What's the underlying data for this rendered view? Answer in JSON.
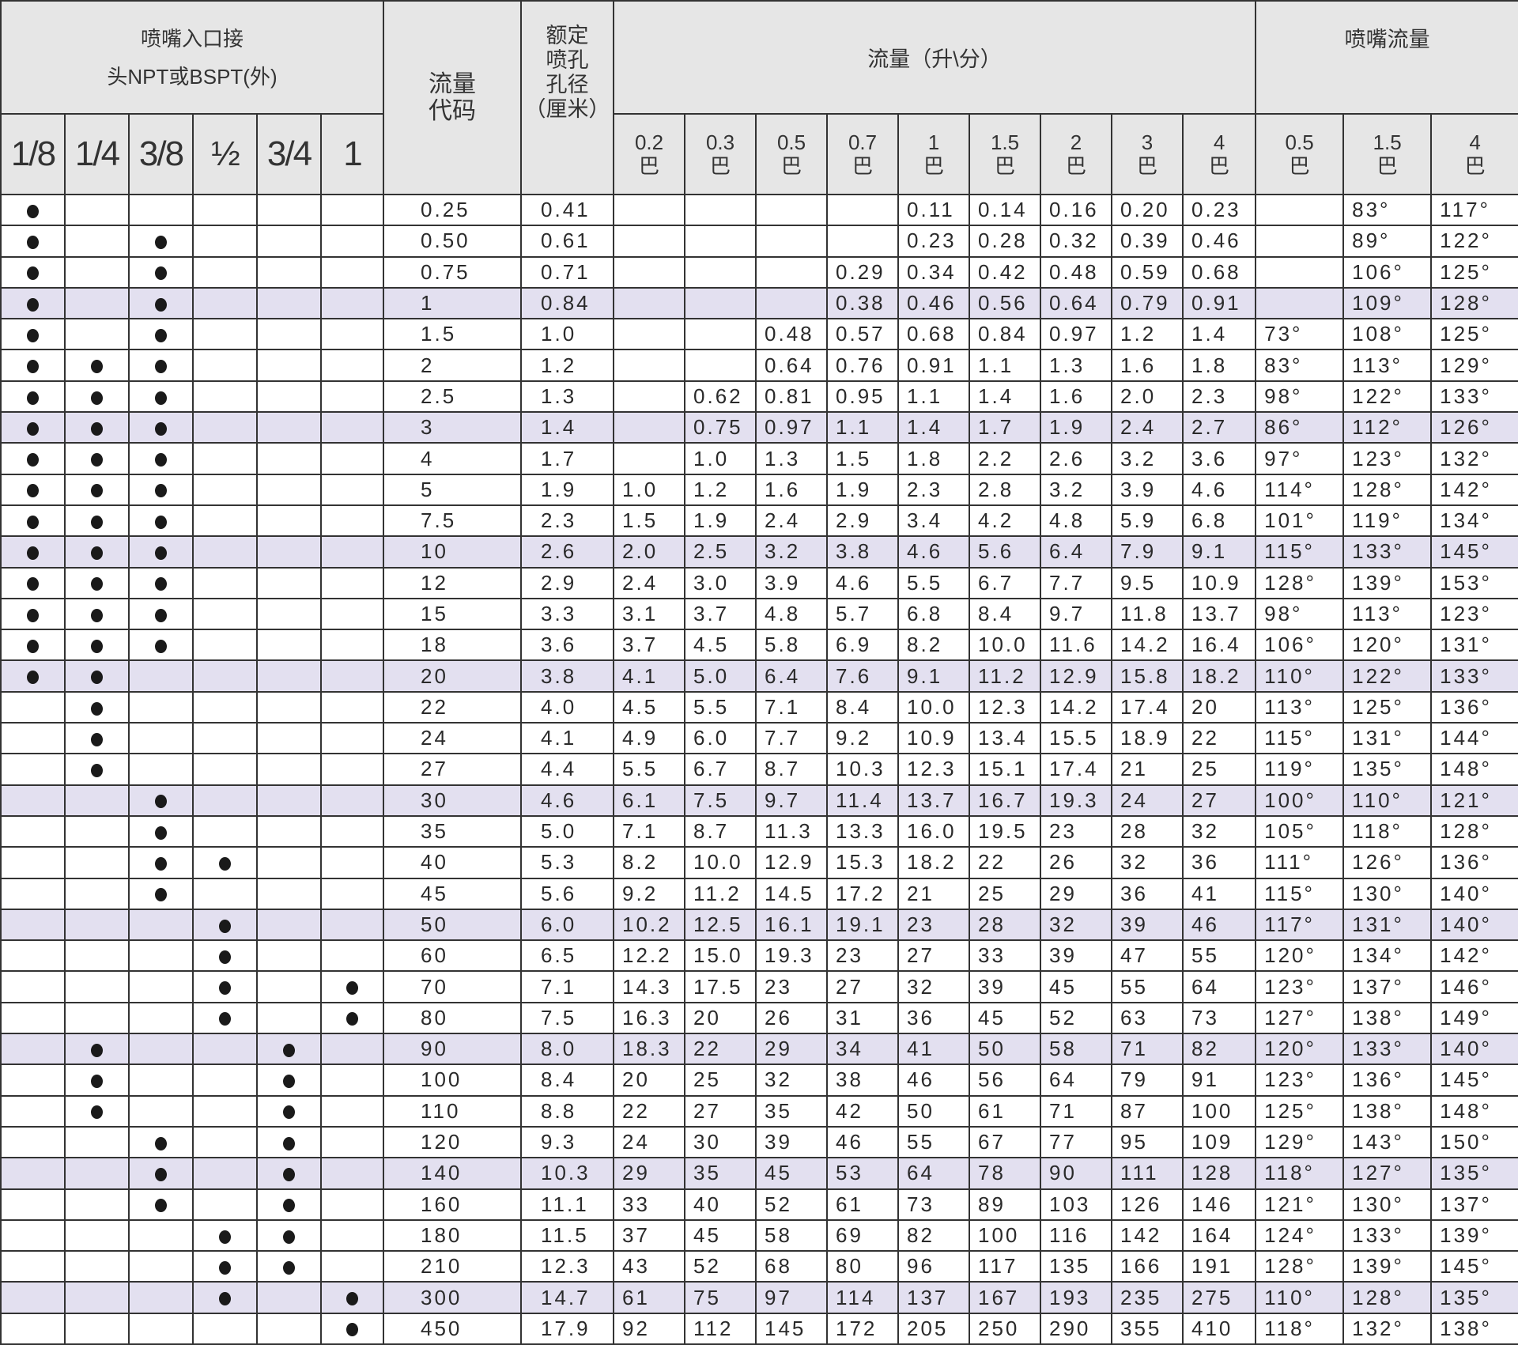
{
  "header": {
    "inlet": "喷嘴入口接头NPT或BSPT(外)",
    "inlet_line1": "喷嘴入口接",
    "inlet_line2": "头NPT或BSPT(外)",
    "code": "流量代码",
    "code_line1": "流量",
    "code_line2": "代码",
    "orifice_lines": [
      "额定",
      "喷孔",
      "孔径",
      "（厘米）"
    ],
    "flow": "流量（升\\分）",
    "angle": "喷嘴流量",
    "sizes": [
      "1/8",
      "1/4",
      "3/8",
      "½",
      "3/4",
      "1"
    ],
    "flow_pressures": [
      "0.2",
      "0.3",
      "0.5",
      "0.7",
      "1",
      "1.5",
      "2",
      "3",
      "4"
    ],
    "angle_pressures": [
      "0.5",
      "1.5",
      "4"
    ],
    "pressure_unit": "巴"
  },
  "colors": {
    "header_bg": "#e6e6e6",
    "shaded_row": "#e3e0f0"
  },
  "rows": [
    {
      "dots": [
        1,
        0,
        0,
        0,
        0,
        0
      ],
      "code": "0.25",
      "orifice": "0.41",
      "flow": [
        "",
        "",
        "",
        "",
        "0.11",
        "0.14",
        "0.16",
        "0.20",
        "0.23"
      ],
      "angle": [
        "",
        "83°",
        "117°"
      ]
    },
    {
      "dots": [
        1,
        0,
        1,
        0,
        0,
        0
      ],
      "code": "0.50",
      "orifice": "0.61",
      "flow": [
        "",
        "",
        "",
        "",
        "0.23",
        "0.28",
        "0.32",
        "0.39",
        "0.46"
      ],
      "angle": [
        "",
        "89°",
        "122°"
      ]
    },
    {
      "dots": [
        1,
        0,
        1,
        0,
        0,
        0
      ],
      "code": "0.75",
      "orifice": "0.71",
      "flow": [
        "",
        "",
        "",
        "0.29",
        "0.34",
        "0.42",
        "0.48",
        "0.59",
        "0.68"
      ],
      "angle": [
        "",
        "106°",
        "125°"
      ]
    },
    {
      "dots": [
        1,
        0,
        1,
        0,
        0,
        0
      ],
      "code": "1",
      "orifice": "0.84",
      "flow": [
        "",
        "",
        "",
        "0.38",
        "0.46",
        "0.56",
        "0.64",
        "0.79",
        "0.91"
      ],
      "angle": [
        "",
        "109°",
        "128°"
      ]
    },
    {
      "dots": [
        1,
        0,
        1,
        0,
        0,
        0
      ],
      "code": "1.5",
      "orifice": "1.0",
      "flow": [
        "",
        "",
        "0.48",
        "0.57",
        "0.68",
        "0.84",
        "0.97",
        "1.2",
        "1.4"
      ],
      "angle": [
        "73°",
        "108°",
        "125°"
      ]
    },
    {
      "dots": [
        1,
        1,
        1,
        0,
        0,
        0
      ],
      "code": "2",
      "orifice": "1.2",
      "flow": [
        "",
        "",
        "0.64",
        "0.76",
        "0.91",
        "1.1",
        "1.3",
        "1.6",
        "1.8"
      ],
      "angle": [
        "83°",
        "113°",
        "129°"
      ]
    },
    {
      "dots": [
        1,
        1,
        1,
        0,
        0,
        0
      ],
      "code": "2.5",
      "orifice": "1.3",
      "flow": [
        "",
        "0.62",
        "0.81",
        "0.95",
        "1.1",
        "1.4",
        "1.6",
        "2.0",
        "2.3"
      ],
      "angle": [
        "98°",
        "122°",
        "133°"
      ]
    },
    {
      "dots": [
        1,
        1,
        1,
        0,
        0,
        0
      ],
      "code": "3",
      "orifice": "1.4",
      "flow": [
        "",
        "0.75",
        "0.97",
        "1.1",
        "1.4",
        "1.7",
        "1.9",
        "2.4",
        "2.7"
      ],
      "angle": [
        "86°",
        "112°",
        "126°"
      ]
    },
    {
      "dots": [
        1,
        1,
        1,
        0,
        0,
        0
      ],
      "code": "4",
      "orifice": "1.7",
      "flow": [
        "",
        "1.0",
        "1.3",
        "1.5",
        "1.8",
        "2.2",
        "2.6",
        "3.2",
        "3.6"
      ],
      "angle": [
        "97°",
        "123°",
        "132°"
      ]
    },
    {
      "dots": [
        1,
        1,
        1,
        0,
        0,
        0
      ],
      "code": "5",
      "orifice": "1.9",
      "flow": [
        "1.0",
        "1.2",
        "1.6",
        "1.9",
        "2.3",
        "2.8",
        "3.2",
        "3.9",
        "4.6"
      ],
      "angle": [
        "114°",
        "128°",
        "142°"
      ]
    },
    {
      "dots": [
        1,
        1,
        1,
        0,
        0,
        0
      ],
      "code": "7.5",
      "orifice": "2.3",
      "flow": [
        "1.5",
        "1.9",
        "2.4",
        "2.9",
        "3.4",
        "4.2",
        "4.8",
        "5.9",
        "6.8"
      ],
      "angle": [
        "101°",
        "119°",
        "134°"
      ]
    },
    {
      "dots": [
        1,
        1,
        1,
        0,
        0,
        0
      ],
      "code": "10",
      "orifice": "2.6",
      "flow": [
        "2.0",
        "2.5",
        "3.2",
        "3.8",
        "4.6",
        "5.6",
        "6.4",
        "7.9",
        "9.1"
      ],
      "angle": [
        "115°",
        "133°",
        "145°"
      ]
    },
    {
      "dots": [
        1,
        1,
        1,
        0,
        0,
        0
      ],
      "code": "12",
      "orifice": "2.9",
      "flow": [
        "2.4",
        "3.0",
        "3.9",
        "4.6",
        "5.5",
        "6.7",
        "7.7",
        "9.5",
        "10.9"
      ],
      "angle": [
        "128°",
        "139°",
        "153°"
      ]
    },
    {
      "dots": [
        1,
        1,
        1,
        0,
        0,
        0
      ],
      "code": "15",
      "orifice": "3.3",
      "flow": [
        "3.1",
        "3.7",
        "4.8",
        "5.7",
        "6.8",
        "8.4",
        "9.7",
        "11.8",
        "13.7"
      ],
      "angle": [
        "98°",
        "113°",
        "123°"
      ]
    },
    {
      "dots": [
        1,
        1,
        1,
        0,
        0,
        0
      ],
      "code": "18",
      "orifice": "3.6",
      "flow": [
        "3.7",
        "4.5",
        "5.8",
        "6.9",
        "8.2",
        "10.0",
        "11.6",
        "14.2",
        "16.4"
      ],
      "angle": [
        "106°",
        "120°",
        "131°"
      ]
    },
    {
      "dots": [
        1,
        1,
        0,
        0,
        0,
        0
      ],
      "code": "20",
      "orifice": "3.8",
      "flow": [
        "4.1",
        "5.0",
        "6.4",
        "7.6",
        "9.1",
        "11.2",
        "12.9",
        "15.8",
        "18.2"
      ],
      "angle": [
        "110°",
        "122°",
        "133°"
      ]
    },
    {
      "dots": [
        0,
        1,
        0,
        0,
        0,
        0
      ],
      "code": "22",
      "orifice": "4.0",
      "flow": [
        "4.5",
        "5.5",
        "7.1",
        "8.4",
        "10.0",
        "12.3",
        "14.2",
        "17.4",
        "20"
      ],
      "angle": [
        "113°",
        "125°",
        "136°"
      ]
    },
    {
      "dots": [
        0,
        1,
        0,
        0,
        0,
        0
      ],
      "code": "24",
      "orifice": "4.1",
      "flow": [
        "4.9",
        "6.0",
        "7.7",
        "9.2",
        "10.9",
        "13.4",
        "15.5",
        "18.9",
        "22"
      ],
      "angle": [
        "115°",
        "131°",
        "144°"
      ]
    },
    {
      "dots": [
        0,
        1,
        0,
        0,
        0,
        0
      ],
      "code": "27",
      "orifice": "4.4",
      "flow": [
        "5.5",
        "6.7",
        "8.7",
        "10.3",
        "12.3",
        "15.1",
        "17.4",
        "21",
        "25"
      ],
      "angle": [
        "119°",
        "135°",
        "148°"
      ]
    },
    {
      "dots": [
        0,
        0,
        1,
        0,
        0,
        0
      ],
      "code": "30",
      "orifice": "4.6",
      "flow": [
        "6.1",
        "7.5",
        "9.7",
        "11.4",
        "13.7",
        "16.7",
        "19.3",
        "24",
        "27"
      ],
      "angle": [
        "100°",
        "110°",
        "121°"
      ]
    },
    {
      "dots": [
        0,
        0,
        1,
        0,
        0,
        0
      ],
      "code": "35",
      "orifice": "5.0",
      "flow": [
        "7.1",
        "8.7",
        "11.3",
        "13.3",
        "16.0",
        "19.5",
        "23",
        "28",
        "32"
      ],
      "angle": [
        "105°",
        "118°",
        "128°"
      ]
    },
    {
      "dots": [
        0,
        0,
        1,
        1,
        0,
        0
      ],
      "code": "40",
      "orifice": "5.3",
      "flow": [
        "8.2",
        "10.0",
        "12.9",
        "15.3",
        "18.2",
        "22",
        "26",
        "32",
        "36"
      ],
      "angle": [
        "111°",
        "126°",
        "136°"
      ]
    },
    {
      "dots": [
        0,
        0,
        1,
        0,
        0,
        0
      ],
      "code": "45",
      "orifice": "5.6",
      "flow": [
        "9.2",
        "11.2",
        "14.5",
        "17.2",
        "21",
        "25",
        "29",
        "36",
        "41"
      ],
      "angle": [
        "115°",
        "130°",
        "140°"
      ]
    },
    {
      "dots": [
        0,
        0,
        0,
        1,
        0,
        0
      ],
      "code": "50",
      "orifice": "6.0",
      "flow": [
        "10.2",
        "12.5",
        "16.1",
        "19.1",
        "23",
        "28",
        "32",
        "39",
        "46"
      ],
      "angle": [
        "117°",
        "131°",
        "140°"
      ]
    },
    {
      "dots": [
        0,
        0,
        0,
        1,
        0,
        0
      ],
      "code": "60",
      "orifice": "6.5",
      "flow": [
        "12.2",
        "15.0",
        "19.3",
        "23",
        "27",
        "33",
        "39",
        "47",
        "55"
      ],
      "angle": [
        "120°",
        "134°",
        "142°"
      ]
    },
    {
      "dots": [
        0,
        0,
        0,
        1,
        0,
        1
      ],
      "code": "70",
      "orifice": "7.1",
      "flow": [
        "14.3",
        "17.5",
        "23",
        "27",
        "32",
        "39",
        "45",
        "55",
        "64"
      ],
      "angle": [
        "123°",
        "137°",
        "146°"
      ]
    },
    {
      "dots": [
        0,
        0,
        0,
        1,
        0,
        1
      ],
      "code": "80",
      "orifice": "7.5",
      "flow": [
        "16.3",
        "20",
        "26",
        "31",
        "36",
        "45",
        "52",
        "63",
        "73"
      ],
      "angle": [
        "127°",
        "138°",
        "149°"
      ]
    },
    {
      "dots": [
        0,
        1,
        0,
        0,
        1,
        0
      ],
      "code": "90",
      "orifice": "8.0",
      "flow": [
        "18.3",
        "22",
        "29",
        "34",
        "41",
        "50",
        "58",
        "71",
        "82"
      ],
      "angle": [
        "120°",
        "133°",
        "140°"
      ]
    },
    {
      "dots": [
        0,
        1,
        0,
        0,
        1,
        0
      ],
      "code": "100",
      "orifice": "8.4",
      "flow": [
        "20",
        "25",
        "32",
        "38",
        "46",
        "56",
        "64",
        "79",
        "91"
      ],
      "angle": [
        "123°",
        "136°",
        "145°"
      ]
    },
    {
      "dots": [
        0,
        1,
        0,
        0,
        1,
        0
      ],
      "code": "110",
      "orifice": "8.8",
      "flow": [
        "22",
        "27",
        "35",
        "42",
        "50",
        "61",
        "71",
        "87",
        "100"
      ],
      "angle": [
        "125°",
        "138°",
        "148°"
      ]
    },
    {
      "dots": [
        0,
        0,
        1,
        0,
        1,
        0
      ],
      "code": "120",
      "orifice": "9.3",
      "flow": [
        "24",
        "30",
        "39",
        "46",
        "55",
        "67",
        "77",
        "95",
        "109"
      ],
      "angle": [
        "129°",
        "143°",
        "150°"
      ]
    },
    {
      "dots": [
        0,
        0,
        1,
        0,
        1,
        0
      ],
      "code": "140",
      "orifice": "10.3",
      "flow": [
        "29",
        "35",
        "45",
        "53",
        "64",
        "78",
        "90",
        "111",
        "128"
      ],
      "angle": [
        "118°",
        "127°",
        "135°"
      ]
    },
    {
      "dots": [
        0,
        0,
        1,
        0,
        1,
        0
      ],
      "code": "160",
      "orifice": "11.1",
      "flow": [
        "33",
        "40",
        "52",
        "61",
        "73",
        "89",
        "103",
        "126",
        "146"
      ],
      "angle": [
        "121°",
        "130°",
        "137°"
      ]
    },
    {
      "dots": [
        0,
        0,
        0,
        1,
        1,
        0
      ],
      "code": "180",
      "orifice": "11.5",
      "flow": [
        "37",
        "45",
        "58",
        "69",
        "82",
        "100",
        "116",
        "142",
        "164"
      ],
      "angle": [
        "124°",
        "133°",
        "139°"
      ]
    },
    {
      "dots": [
        0,
        0,
        0,
        1,
        1,
        0
      ],
      "code": "210",
      "orifice": "12.3",
      "flow": [
        "43",
        "52",
        "68",
        "80",
        "96",
        "117",
        "135",
        "166",
        "191"
      ],
      "angle": [
        "128°",
        "139°",
        "145°"
      ]
    },
    {
      "dots": [
        0,
        0,
        0,
        1,
        0,
        1
      ],
      "code": "300",
      "orifice": "14.7",
      "flow": [
        "61",
        "75",
        "97",
        "114",
        "137",
        "167",
        "193",
        "235",
        "275"
      ],
      "angle": [
        "110°",
        "128°",
        "135°"
      ]
    },
    {
      "dots": [
        0,
        0,
        0,
        0,
        0,
        1
      ],
      "code": "450",
      "orifice": "17.9",
      "flow": [
        "92",
        "112",
        "145",
        "172",
        "205",
        "250",
        "290",
        "355",
        "410"
      ],
      "angle": [
        "118°",
        "132°",
        "138°"
      ]
    }
  ]
}
